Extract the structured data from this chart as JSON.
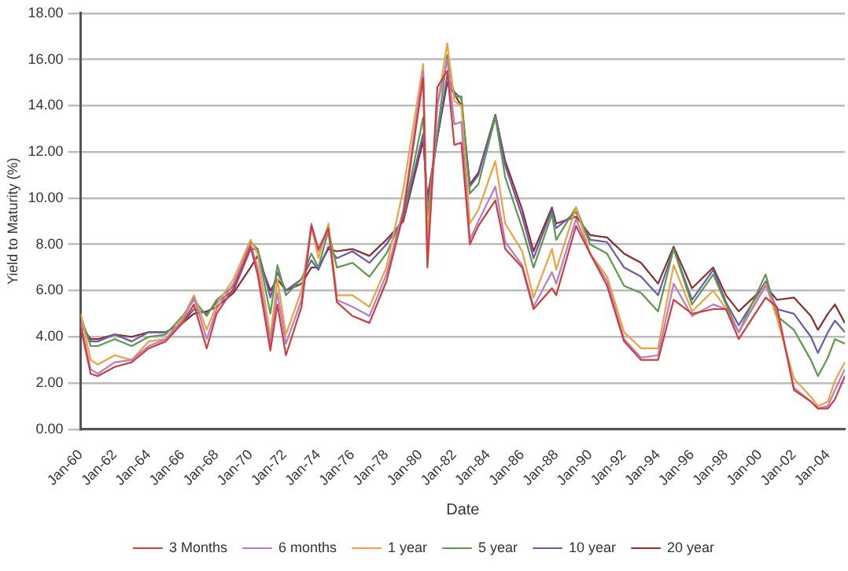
{
  "chart_data": {
    "type": "line",
    "xlabel": "Date",
    "ylabel": "Yield to Maturity (%)",
    "x": [
      "1960-01",
      "1960-08",
      "1961-01",
      "1962-01",
      "1963-01",
      "1964-01",
      "1965-01",
      "1966-01",
      "1966-09",
      "1967-06",
      "1968-01",
      "1969-01",
      "1970-01",
      "1970-06",
      "1971-03",
      "1971-08",
      "1972-02",
      "1973-01",
      "1973-08",
      "1974-01",
      "1974-08",
      "1975-02",
      "1976-01",
      "1977-01",
      "1978-01",
      "1979-01",
      "1980-03",
      "1980-06",
      "1981-01",
      "1981-08",
      "1982-01",
      "1982-06",
      "1982-12",
      "1983-06",
      "1984-06",
      "1985-01",
      "1986-01",
      "1986-09",
      "1987-10",
      "1988-01",
      "1989-03",
      "1990-01",
      "1991-01",
      "1992-01",
      "1993-01",
      "1994-01",
      "1994-12",
      "1996-01",
      "1997-04",
      "1998-01",
      "1998-10",
      "2000-05",
      "2001-01",
      "2002-01",
      "2003-01",
      "2003-06",
      "2004-01",
      "2004-06",
      "2005-01"
    ],
    "series": [
      {
        "name": "3 Months",
        "color": "#d23c3c",
        "values": [
          4.4,
          2.4,
          2.3,
          2.7,
          2.9,
          3.5,
          3.8,
          4.6,
          5.4,
          3.5,
          5.0,
          6.1,
          7.9,
          6.7,
          3.4,
          5.4,
          3.2,
          5.3,
          8.8,
          7.8,
          8.7,
          5.5,
          4.9,
          4.6,
          6.4,
          9.3,
          15.2,
          7.0,
          14.8,
          15.5,
          12.3,
          12.4,
          8.0,
          8.8,
          9.9,
          7.8,
          7.0,
          5.2,
          6.1,
          5.8,
          8.8,
          7.6,
          6.2,
          3.8,
          3.0,
          3.0,
          5.6,
          5.0,
          5.2,
          5.2,
          3.9,
          5.7,
          5.3,
          1.7,
          1.2,
          0.9,
          0.9,
          1.3,
          2.3
        ]
      },
      {
        "name": "6 months",
        "color": "#b37fc2",
        "values": [
          4.6,
          2.6,
          2.4,
          2.9,
          3.0,
          3.6,
          3.9,
          4.7,
          5.7,
          3.9,
          5.2,
          6.3,
          8.0,
          7.0,
          3.7,
          5.9,
          3.7,
          5.6,
          8.9,
          7.7,
          8.6,
          5.6,
          5.3,
          4.9,
          6.7,
          9.5,
          15.5,
          7.2,
          14.0,
          16.0,
          13.2,
          13.3,
          8.2,
          9.0,
          10.5,
          8.1,
          7.1,
          5.3,
          6.8,
          6.3,
          9.1,
          7.6,
          6.4,
          3.9,
          3.1,
          3.2,
          6.3,
          4.9,
          5.4,
          5.2,
          4.2,
          6.2,
          5.2,
          1.8,
          1.2,
          0.9,
          1.0,
          1.7,
          2.6
        ]
      },
      {
        "name": "1 year",
        "color": "#f0a040",
        "values": [
          5.0,
          3.0,
          2.8,
          3.2,
          3.0,
          3.8,
          3.9,
          4.8,
          5.8,
          4.3,
          5.4,
          6.5,
          8.2,
          7.6,
          4.0,
          6.5,
          4.1,
          6.0,
          8.8,
          7.4,
          8.9,
          5.8,
          5.8,
          5.3,
          7.0,
          10.4,
          15.8,
          8.2,
          14.0,
          16.7,
          14.2,
          14.0,
          8.9,
          9.5,
          11.6,
          8.9,
          7.7,
          5.7,
          7.8,
          6.9,
          9.6,
          7.6,
          6.6,
          4.2,
          3.5,
          3.5,
          7.1,
          5.1,
          6.0,
          5.2,
          4.2,
          6.3,
          4.8,
          2.2,
          1.4,
          1.0,
          1.2,
          2.1,
          2.9
        ]
      },
      {
        "name": "5 year",
        "color": "#5a9a4a",
        "values": [
          4.9,
          3.6,
          3.6,
          3.9,
          3.6,
          4.0,
          4.1,
          4.9,
          5.6,
          4.9,
          5.6,
          6.2,
          8.1,
          7.8,
          5.0,
          7.1,
          5.8,
          6.5,
          7.6,
          7.0,
          8.6,
          7.0,
          7.2,
          6.6,
          7.6,
          9.2,
          13.5,
          9.2,
          12.8,
          16.2,
          14.4,
          14.4,
          10.2,
          10.6,
          13.5,
          10.9,
          8.7,
          7.0,
          9.3,
          8.2,
          9.6,
          8.0,
          7.6,
          6.2,
          5.9,
          5.1,
          7.8,
          5.4,
          6.7,
          5.4,
          4.2,
          6.7,
          4.9,
          4.3,
          3.0,
          2.3,
          3.1,
          3.9,
          3.7
        ]
      },
      {
        "name": "10 year",
        "color": "#6a5aa8",
        "values": [
          4.7,
          3.8,
          3.8,
          4.1,
          3.8,
          4.2,
          4.2,
          4.6,
          5.2,
          5.0,
          5.5,
          6.0,
          7.8,
          7.8,
          5.7,
          6.8,
          6.0,
          6.5,
          7.3,
          6.9,
          7.9,
          7.4,
          7.7,
          7.2,
          8.0,
          9.1,
          12.8,
          9.8,
          12.6,
          15.3,
          14.6,
          14.3,
          10.5,
          11.0,
          13.6,
          11.4,
          9.2,
          7.4,
          9.5,
          8.7,
          9.4,
          8.2,
          8.1,
          7.0,
          6.6,
          5.8,
          7.8,
          5.6,
          6.9,
          5.5,
          4.5,
          6.4,
          5.2,
          5.0,
          4.0,
          3.3,
          4.2,
          4.7,
          4.2
        ]
      },
      {
        "name": "20 year",
        "color": "#8b2e2e",
        "values": [
          4.5,
          3.9,
          3.9,
          4.1,
          4.0,
          4.2,
          4.2,
          4.6,
          5.0,
          5.1,
          5.3,
          5.9,
          7.0,
          7.5,
          6.0,
          6.5,
          6.0,
          6.3,
          7.0,
          7.0,
          7.8,
          7.7,
          7.8,
          7.5,
          8.2,
          9.0,
          12.5,
          10.0,
          12.6,
          15.0,
          14.5,
          14.0,
          10.6,
          11.1,
          13.6,
          11.6,
          9.5,
          7.7,
          9.6,
          8.9,
          9.2,
          8.4,
          8.3,
          7.6,
          7.2,
          6.3,
          7.9,
          6.1,
          7.0,
          5.8,
          5.1,
          6.2,
          5.6,
          5.7,
          4.9,
          4.3,
          5.0,
          5.4,
          4.6
        ]
      }
    ],
    "xlim": [
      "1960-01",
      "2005-01"
    ],
    "xticks": [
      {
        "value": "1960-01",
        "label": "Jan-60"
      },
      {
        "value": "1962-01",
        "label": "Jan-62"
      },
      {
        "value": "1964-01",
        "label": "Jan-64"
      },
      {
        "value": "1966-01",
        "label": "Jan-66"
      },
      {
        "value": "1968-01",
        "label": "Jan-68"
      },
      {
        "value": "1970-01",
        "label": "Jan-70"
      },
      {
        "value": "1972-01",
        "label": "Jan-72"
      },
      {
        "value": "1974-01",
        "label": "Jan-74"
      },
      {
        "value": "1976-01",
        "label": "Jan-76"
      },
      {
        "value": "1978-01",
        "label": "Jan-78"
      },
      {
        "value": "1980-01",
        "label": "Jan-80"
      },
      {
        "value": "1982-01",
        "label": "Jan-82"
      },
      {
        "value": "1984-01",
        "label": "Jan-84"
      },
      {
        "value": "1986-01",
        "label": "Jan-86"
      },
      {
        "value": "1988-01",
        "label": "Jan-88"
      },
      {
        "value": "1990-01",
        "label": "Jan-90"
      },
      {
        "value": "1992-01",
        "label": "Jan-92"
      },
      {
        "value": "1994-01",
        "label": "Jan-94"
      },
      {
        "value": "1996-01",
        "label": "Jan-96"
      },
      {
        "value": "1998-01",
        "label": "Jan-98"
      },
      {
        "value": "2000-01",
        "label": "Jan-00"
      },
      {
        "value": "2002-01",
        "label": "Jan-02"
      },
      {
        "value": "2004-01",
        "label": "Jan-04"
      }
    ],
    "ylim": [
      0,
      18
    ],
    "yticks": [
      {
        "value": 0,
        "label": "0.00"
      },
      {
        "value": 2,
        "label": "2.00"
      },
      {
        "value": 4,
        "label": "4.00"
      },
      {
        "value": 6,
        "label": "6.00"
      },
      {
        "value": 8,
        "label": "8.00"
      },
      {
        "value": 10,
        "label": "10.00"
      },
      {
        "value": 12,
        "label": "12.00"
      },
      {
        "value": 14,
        "label": "14.00"
      },
      {
        "value": 16,
        "label": "16.00"
      },
      {
        "value": 18,
        "label": "18.00"
      }
    ],
    "grid": "y",
    "legend": "bottom",
    "marker": "none",
    "line_style": "solid"
  }
}
